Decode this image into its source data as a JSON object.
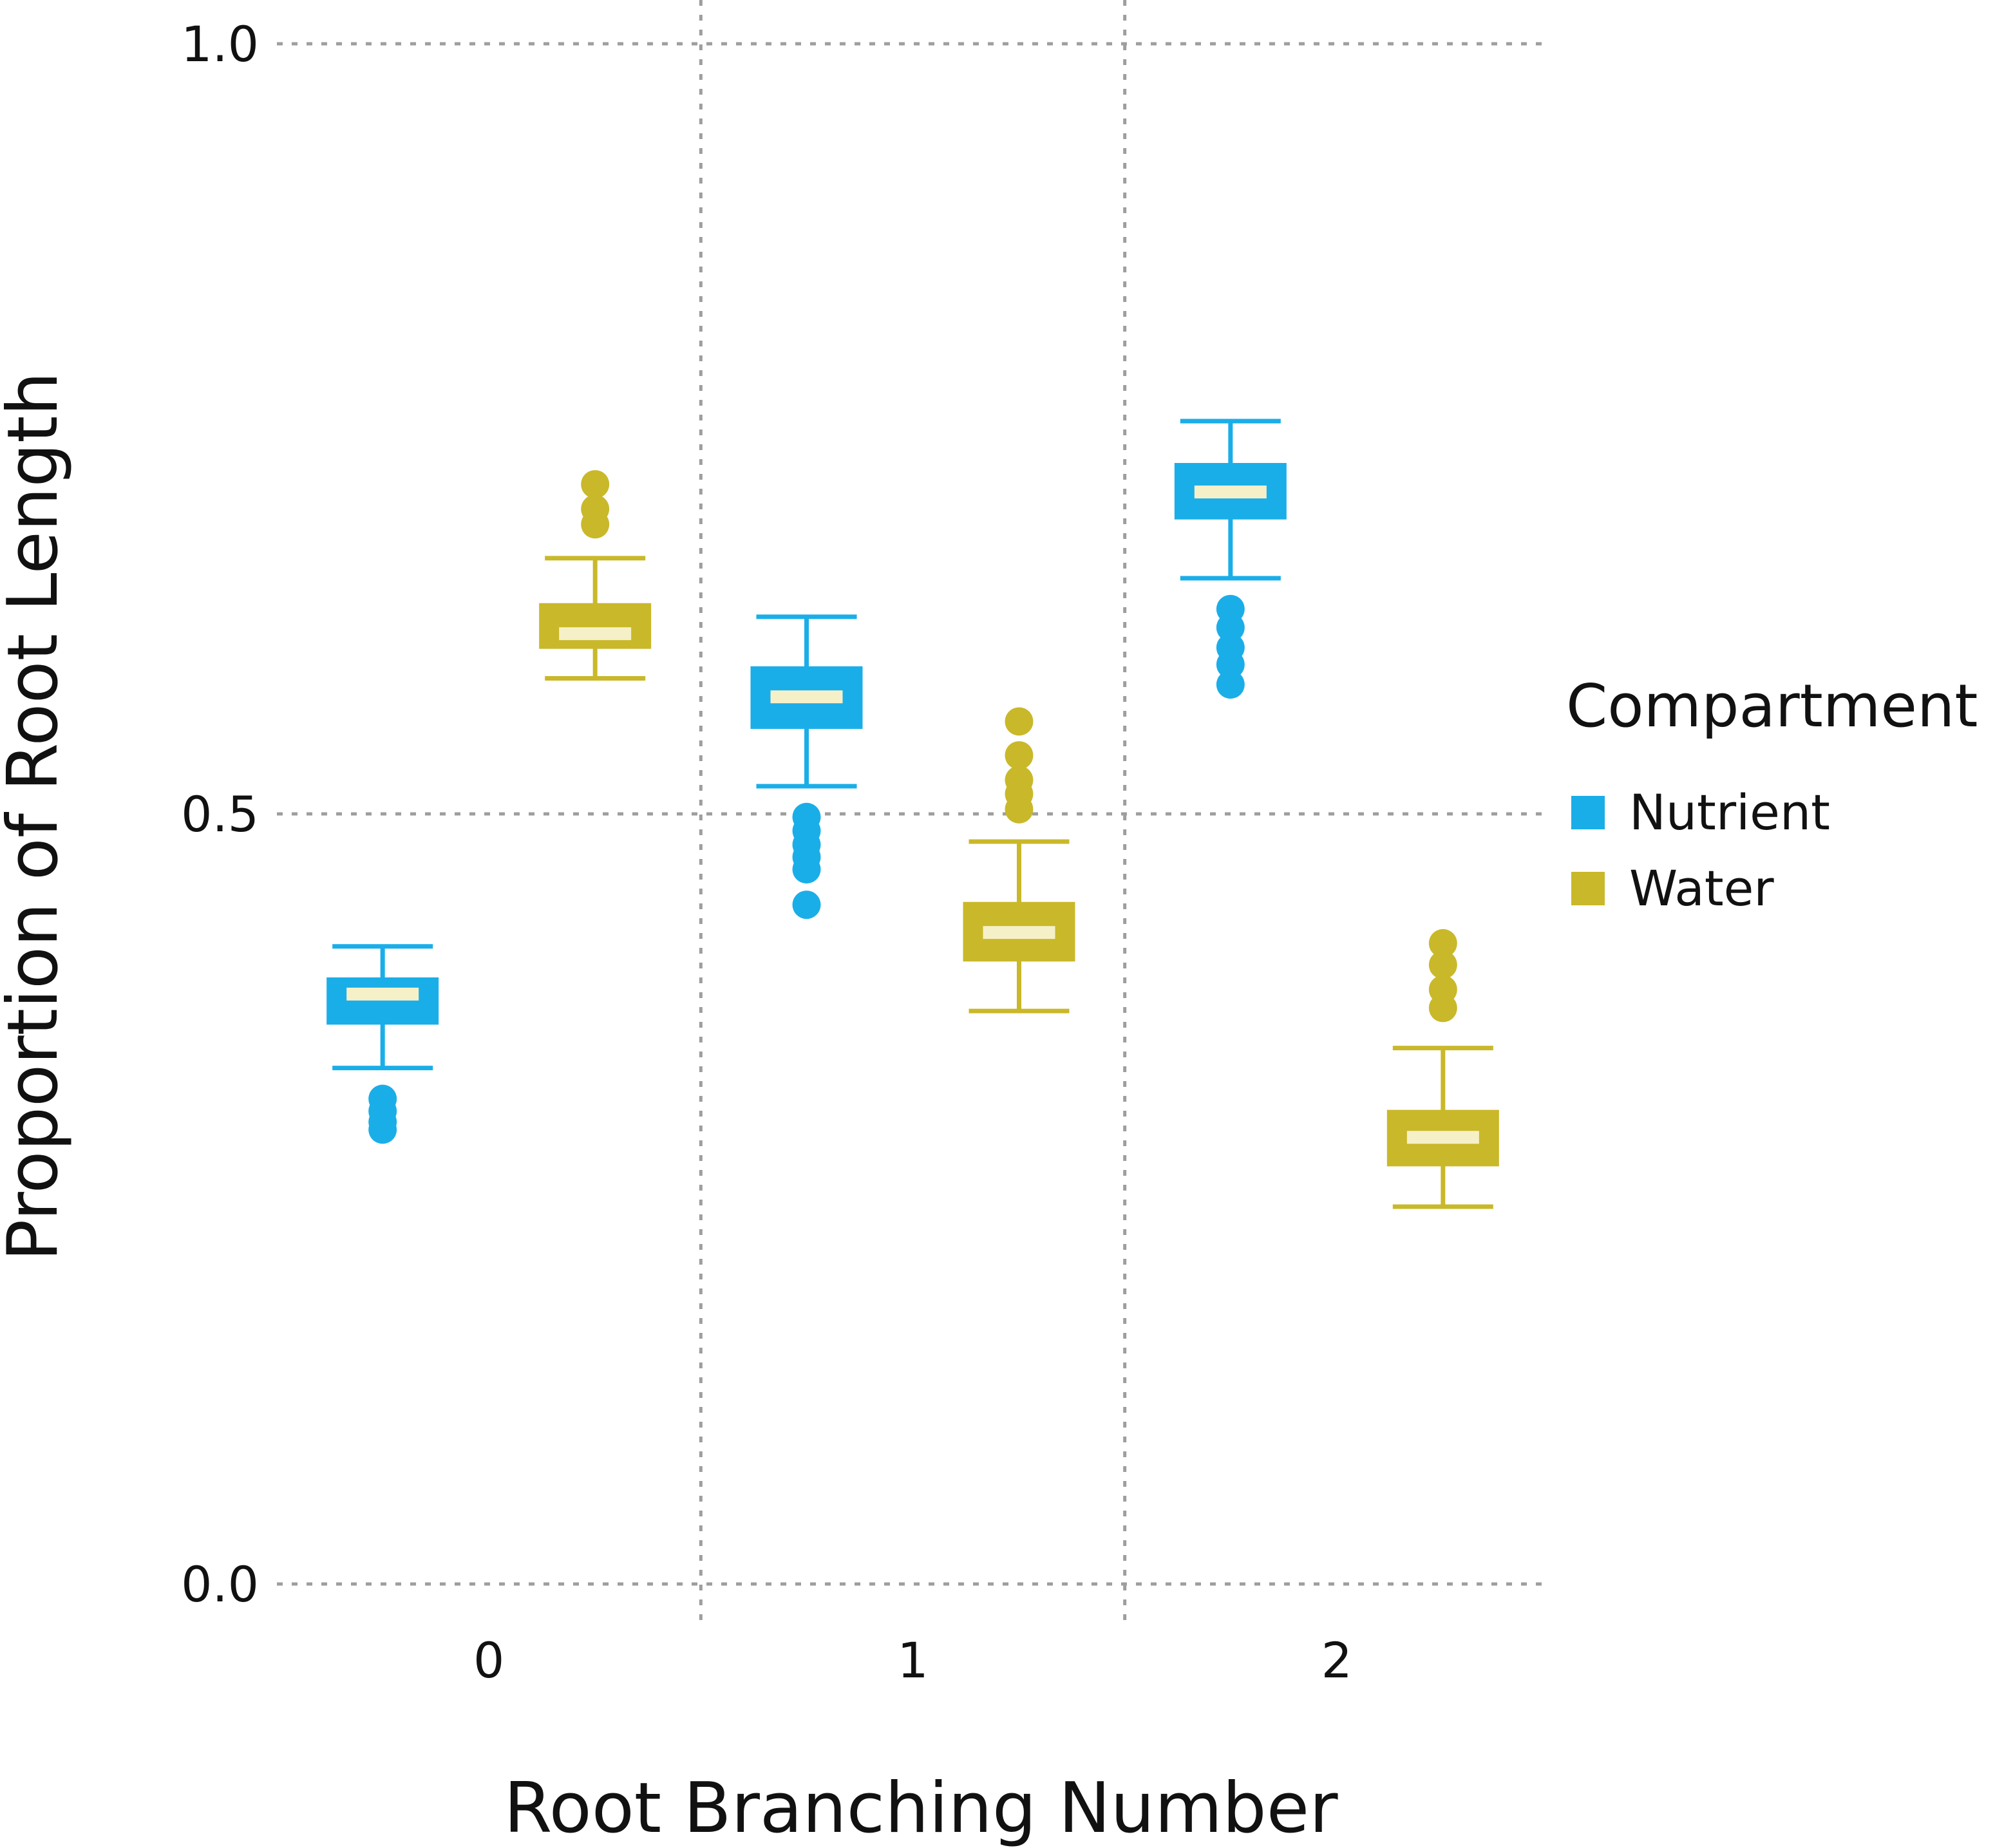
{
  "chart_data": {
    "type": "boxplot",
    "title": "",
    "xlabel": "Root Branching Number",
    "ylabel": "Proportion of Root Length",
    "categories": [
      "0",
      "1",
      "2"
    ],
    "ylim": [
      0.0,
      1.0
    ],
    "yticks": [
      {
        "value": 0.0,
        "label": "0.0"
      },
      {
        "value": 0.5,
        "label": "0.5"
      },
      {
        "value": 1.0,
        "label": "1.0"
      }
    ],
    "grid": true,
    "legend": {
      "title": "Compartment",
      "position": "right"
    },
    "series": [
      {
        "name": "Nutrient",
        "color": "#1aaee8",
        "boxes": [
          {
            "category": "0",
            "whisker_low": 0.335,
            "q1": 0.364,
            "median": 0.383,
            "q3": 0.393,
            "whisker_high": 0.414,
            "outliers": [
              0.315,
              0.307,
              0.3,
              0.295
            ]
          },
          {
            "category": "1",
            "whisker_low": 0.518,
            "q1": 0.556,
            "median": 0.576,
            "q3": 0.595,
            "whisker_high": 0.628,
            "outliers": [
              0.498,
              0.489,
              0.48,
              0.472,
              0.464,
              0.441
            ]
          },
          {
            "category": "2",
            "whisker_low": 0.653,
            "q1": 0.692,
            "median": 0.709,
            "q3": 0.727,
            "whisker_high": 0.755,
            "outliers": [
              0.633,
              0.621,
              0.608,
              0.597,
              0.584
            ]
          }
        ]
      },
      {
        "name": "Water",
        "color": "#c9b829",
        "boxes": [
          {
            "category": "0",
            "whisker_low": 0.588,
            "q1": 0.608,
            "median": 0.617,
            "q3": 0.636,
            "whisker_high": 0.666,
            "outliers": [
              0.714,
              0.698,
              0.688
            ]
          },
          {
            "category": "1",
            "whisker_low": 0.372,
            "q1": 0.405,
            "median": 0.423,
            "q3": 0.442,
            "whisker_high": 0.482,
            "outliers": [
              0.56,
              0.538,
              0.522,
              0.513,
              0.503
            ]
          },
          {
            "category": "2",
            "whisker_low": 0.245,
            "q1": 0.272,
            "median": 0.29,
            "q3": 0.307,
            "whisker_high": 0.348,
            "outliers": [
              0.416,
              0.402,
              0.386,
              0.374
            ]
          }
        ]
      }
    ]
  }
}
